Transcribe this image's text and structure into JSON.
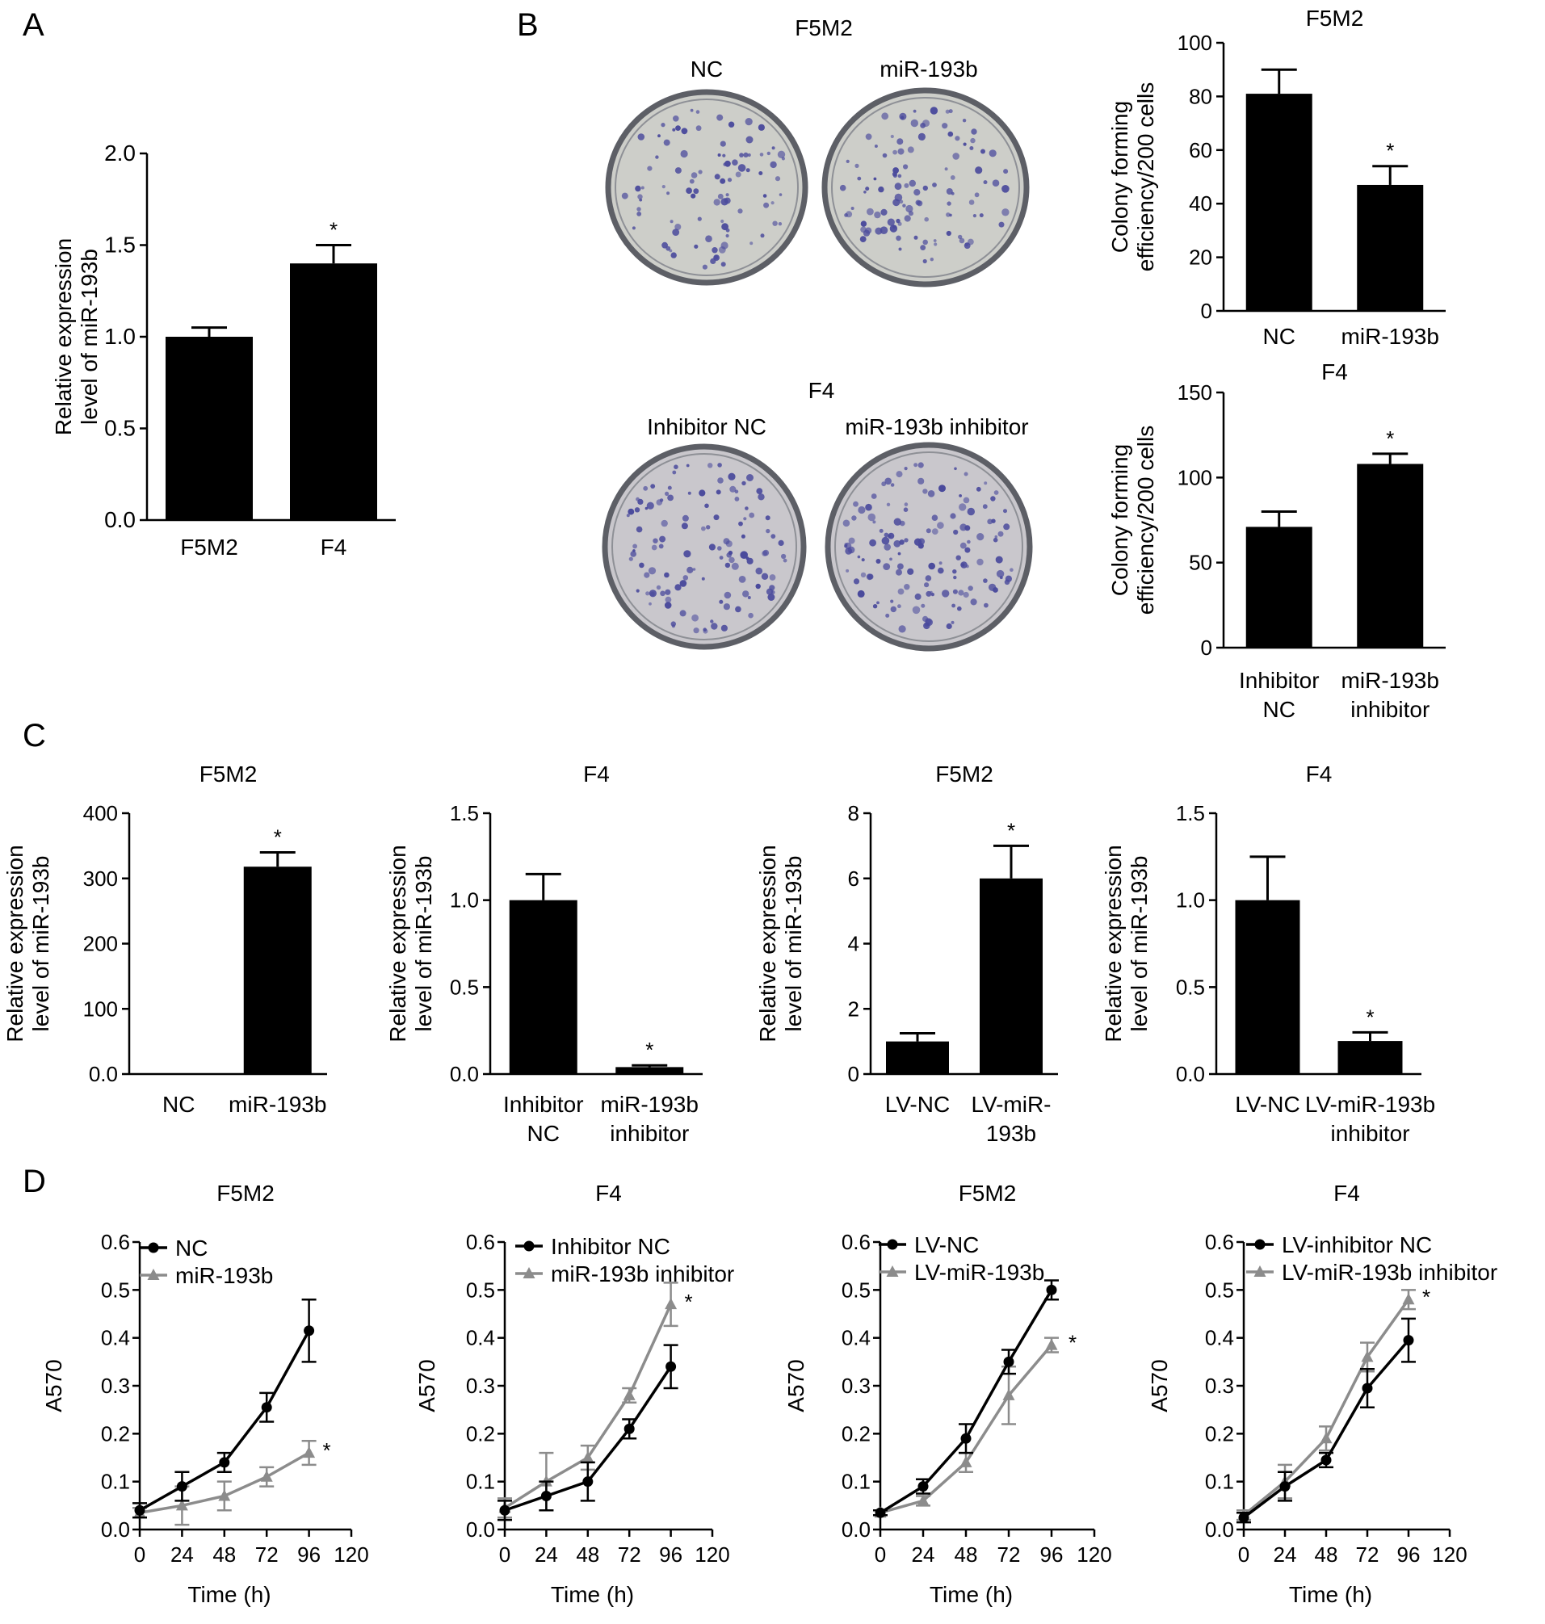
{
  "figure": {
    "panel_letters": [
      "A",
      "B",
      "C",
      "D"
    ],
    "colony_photos": {
      "top": {
        "title": "F5M2",
        "labels": [
          "NC",
          "miR-193b"
        ]
      },
      "bottom": {
        "title": "F4",
        "labels": [
          "Inhibitor NC",
          "miR-193b inhibitor"
        ]
      }
    }
  },
  "colors": {
    "bar": "#000000",
    "line_primary": "#000000",
    "line_secondary": "#8c8c8c",
    "dish_rim": "#5d5f66",
    "dish_fill": "#cdcec9",
    "colony": "#4a4a9c"
  },
  "chart_data": [
    {
      "id": "A",
      "type": "bar",
      "title": "",
      "ylabel": [
        "Relative expression",
        "level of miR-193b"
      ],
      "xlabel": "",
      "ylim": [
        0,
        2.0
      ],
      "yticks": [
        "0.0",
        "0.5",
        "1.0",
        "1.5",
        "2.0"
      ],
      "categories": [
        [
          "F5M2"
        ],
        [
          "F4"
        ]
      ],
      "values": [
        1.0,
        1.4
      ],
      "errors": [
        0.05,
        0.1
      ],
      "significance": [
        "",
        "*"
      ]
    },
    {
      "id": "B1",
      "type": "bar",
      "title": "F5M2",
      "ylabel": [
        "Colony forming",
        "efficiency/200 cells"
      ],
      "xlabel": "",
      "ylim": [
        0,
        100
      ],
      "yticks": [
        "0",
        "20",
        "40",
        "60",
        "80",
        "100"
      ],
      "categories": [
        [
          "NC"
        ],
        [
          "miR-193b"
        ]
      ],
      "values": [
        81,
        47
      ],
      "errors": [
        9,
        7
      ],
      "significance": [
        "",
        "*"
      ]
    },
    {
      "id": "B2",
      "type": "bar",
      "title": "F4",
      "ylabel": [
        "Colony forming",
        "efficiency/200 cells"
      ],
      "xlabel": "",
      "ylim": [
        0,
        150
      ],
      "yticks": [
        "0",
        "50",
        "100",
        "150"
      ],
      "categories": [
        [
          "Inhibitor",
          "NC"
        ],
        [
          "miR-193b",
          "inhibitor"
        ]
      ],
      "values": [
        71,
        108
      ],
      "errors": [
        9,
        6
      ],
      "significance": [
        "",
        "*"
      ]
    },
    {
      "id": "C1",
      "type": "bar",
      "title": "F5M2",
      "ylabel": [
        "Relative expression",
        "level of miR-193b"
      ],
      "xlabel": "",
      "ylim": [
        0,
        400
      ],
      "yticks": [
        "0.0",
        "100",
        "200",
        "300",
        "400"
      ],
      "categories": [
        [
          "NC"
        ],
        [
          "miR-193b"
        ]
      ],
      "values": [
        1,
        318
      ],
      "errors": [
        0,
        22
      ],
      "significance": [
        "",
        "*"
      ]
    },
    {
      "id": "C2",
      "type": "bar",
      "title": "F4",
      "ylabel": [
        "Relative expression",
        "level of miR-193b"
      ],
      "xlabel": "",
      "ylim": [
        0,
        1.5
      ],
      "yticks": [
        "0.0",
        "0.5",
        "1.0",
        "1.5"
      ],
      "categories": [
        [
          "Inhibitor",
          "NC"
        ],
        [
          "miR-193b",
          "inhibitor"
        ]
      ],
      "values": [
        1.0,
        0.04
      ],
      "errors": [
        0.15,
        0.01
      ],
      "significance": [
        "",
        "*"
      ]
    },
    {
      "id": "C3",
      "type": "bar",
      "title": "F5M2",
      "ylabel": [
        "Relative expression",
        "level of miR-193b"
      ],
      "xlabel": "",
      "ylim": [
        0,
        8
      ],
      "yticks": [
        "0",
        "2",
        "4",
        "6",
        "8"
      ],
      "categories": [
        [
          "LV-NC"
        ],
        [
          "LV-miR-",
          "193b"
        ]
      ],
      "values": [
        1.0,
        6.0
      ],
      "errors": [
        0.25,
        1.0
      ],
      "significance": [
        "",
        "*"
      ]
    },
    {
      "id": "C4",
      "type": "bar",
      "title": "F4",
      "ylabel": [
        "Relative expression",
        "level of miR-193b"
      ],
      "xlabel": "",
      "ylim": [
        0,
        1.5
      ],
      "yticks": [
        "0.0",
        "0.5",
        "1.0",
        "1.5"
      ],
      "categories": [
        [
          "LV-NC"
        ],
        [
          "LV-miR-193b",
          "inhibitor"
        ]
      ],
      "values": [
        1.0,
        0.19
      ],
      "errors": [
        0.25,
        0.05
      ],
      "significance": [
        "",
        "*"
      ]
    },
    {
      "id": "D1",
      "type": "line",
      "title": "F5M2",
      "xlabel": "Time (h)",
      "ylabel": "A570",
      "xlim": [
        0,
        120
      ],
      "ylim": [
        0,
        0.6
      ],
      "xticks": [
        "0",
        "24",
        "48",
        "72",
        "96",
        "120"
      ],
      "yticks": [
        "0.0",
        "0.1",
        "0.2",
        "0.3",
        "0.4",
        "0.5",
        "0.6"
      ],
      "x": [
        0,
        24,
        48,
        72,
        96
      ],
      "series": [
        {
          "name": "NC",
          "marker": "circle",
          "values": [
            0.04,
            0.09,
            0.14,
            0.255,
            0.415
          ],
          "errors": [
            0.015,
            0.03,
            0.02,
            0.03,
            0.065
          ]
        },
        {
          "name": "miR-193b",
          "marker": "triangle",
          "values": [
            0.035,
            0.05,
            0.07,
            0.11,
            0.16
          ],
          "errors": [
            0.01,
            0.04,
            0.03,
            0.02,
            0.025
          ]
        }
      ],
      "significance": "*"
    },
    {
      "id": "D2",
      "type": "line",
      "title": "F4",
      "xlabel": "Time (h)",
      "ylabel": "A570",
      "xlim": [
        0,
        120
      ],
      "ylim": [
        0,
        0.6
      ],
      "xticks": [
        "0",
        "24",
        "48",
        "72",
        "96",
        "120"
      ],
      "yticks": [
        "0.0",
        "0.1",
        "0.2",
        "0.3",
        "0.4",
        "0.5",
        "0.6"
      ],
      "x": [
        0,
        24,
        48,
        72,
        96
      ],
      "series": [
        {
          "name": "Inhibitor NC",
          "marker": "circle",
          "values": [
            0.04,
            0.07,
            0.1,
            0.21,
            0.34
          ],
          "errors": [
            0.02,
            0.03,
            0.04,
            0.02,
            0.045
          ]
        },
        {
          "name": "miR-193b inhibitor",
          "marker": "triangle",
          "values": [
            0.045,
            0.1,
            0.15,
            0.28,
            0.47
          ],
          "errors": [
            0.02,
            0.06,
            0.025,
            0.015,
            0.045
          ]
        }
      ],
      "significance": "*"
    },
    {
      "id": "D3",
      "type": "line",
      "title": "F5M2",
      "xlabel": "Time (h)",
      "ylabel": "A570",
      "xlim": [
        0,
        120
      ],
      "ylim": [
        0,
        0.6
      ],
      "xticks": [
        "0",
        "24",
        "48",
        "72",
        "96",
        "120"
      ],
      "yticks": [
        "0.0",
        "0.1",
        "0.2",
        "0.3",
        "0.4",
        "0.5",
        "0.6"
      ],
      "x": [
        0,
        24,
        48,
        72,
        96
      ],
      "series": [
        {
          "name": "LV-NC",
          "marker": "circle",
          "values": [
            0.035,
            0.09,
            0.19,
            0.35,
            0.5
          ],
          "errors": [
            0.005,
            0.015,
            0.03,
            0.025,
            0.02
          ]
        },
        {
          "name": "LV-miR-193b",
          "marker": "triangle",
          "values": [
            0.035,
            0.06,
            0.14,
            0.28,
            0.385
          ],
          "errors": [
            0.005,
            0.01,
            0.02,
            0.06,
            0.015
          ]
        }
      ],
      "significance": "*"
    },
    {
      "id": "D4",
      "type": "line",
      "title": "F4",
      "xlabel": "Time (h)",
      "ylabel": "A570",
      "xlim": [
        0,
        120
      ],
      "ylim": [
        0,
        0.6
      ],
      "xticks": [
        "0",
        "24",
        "48",
        "72",
        "96",
        "120"
      ],
      "yticks": [
        "0.0",
        "0.1",
        "0.2",
        "0.3",
        "0.4",
        "0.5",
        "0.6"
      ],
      "x": [
        0,
        24,
        48,
        72,
        96
      ],
      "series": [
        {
          "name": "LV-inhibitor NC",
          "marker": "circle",
          "values": [
            0.025,
            0.09,
            0.145,
            0.295,
            0.395
          ],
          "errors": [
            0.01,
            0.03,
            0.015,
            0.04,
            0.045
          ]
        },
        {
          "name": "LV-miR-193b inhibitor",
          "marker": "triangle",
          "values": [
            0.03,
            0.1,
            0.19,
            0.36,
            0.48
          ],
          "errors": [
            0.01,
            0.035,
            0.025,
            0.03,
            0.02
          ]
        }
      ],
      "significance": "*"
    }
  ]
}
